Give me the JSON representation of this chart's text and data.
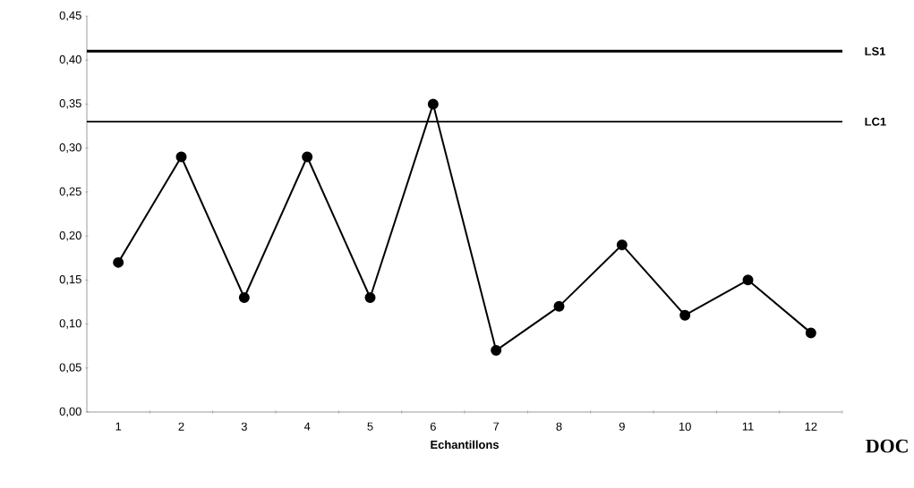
{
  "chart_data": {
    "type": "line",
    "xlabel": "Echantillons",
    "categories": [
      "1",
      "2",
      "3",
      "4",
      "5",
      "6",
      "7",
      "8",
      "9",
      "10",
      "11",
      "12"
    ],
    "values": [
      0.17,
      0.29,
      0.13,
      0.29,
      0.13,
      0.35,
      0.07,
      0.12,
      0.19,
      0.11,
      0.15,
      0.09
    ],
    "color": "#000000",
    "marker": "circle",
    "line_style": "solid",
    "grid": false,
    "ylim": [
      0,
      0.45
    ],
    "yticks": [
      {
        "value": 0,
        "label": "0,00"
      },
      {
        "value": 0.05,
        "label": "0,05"
      },
      {
        "value": 0.1,
        "label": "0,10"
      },
      {
        "value": 0.15,
        "label": "0,15"
      },
      {
        "value": 0.2,
        "label": "0,20"
      },
      {
        "value": 0.25,
        "label": "0,25"
      },
      {
        "value": 0.3,
        "label": "0,30"
      },
      {
        "value": 0.35,
        "label": "0,35"
      },
      {
        "value": 0.4,
        "label": "0,40"
      },
      {
        "value": 0.45,
        "label": "0,45"
      }
    ],
    "ref_lines": [
      {
        "axis": "y",
        "value": 0.41,
        "label": "LS1",
        "color": "#000000"
      },
      {
        "axis": "y",
        "value": 0.33,
        "label": "LC1",
        "color": "#000000"
      }
    ],
    "annotations": [
      "DOC"
    ]
  }
}
